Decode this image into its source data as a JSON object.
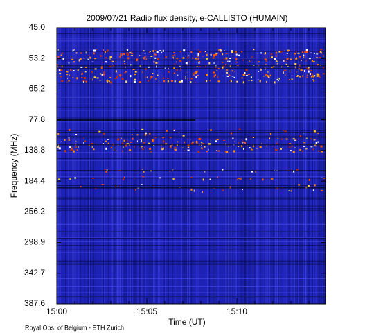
{
  "chart_data": {
    "type": "spectrogram",
    "title": "2009/07/21  Radio flux density, e-CALLISTO (HUMAIN)",
    "y_label": "Frequency (MHz)",
    "x_label": "Time (UT)",
    "yticks": [
      {
        "value": 45,
        "label": "45.0"
      },
      {
        "value": 53.2,
        "label": "53.2"
      },
      {
        "value": 65.2,
        "label": "65.2"
      },
      {
        "value": 77.8,
        "label": "77.8"
      },
      {
        "value": 138.8,
        "label": "138.8"
      },
      {
        "value": 184.4,
        "label": "184.4"
      },
      {
        "value": 256.2,
        "label": "256.2"
      },
      {
        "value": 298.9,
        "label": "298.9"
      },
      {
        "value": 342.7,
        "label": "342.7"
      },
      {
        "value": 387.6,
        "label": "387.6"
      }
    ],
    "xticks": [
      "15:00",
      "15:05",
      "15:10"
    ],
    "credit": "Royal Obs. of Belgium - ETH Zurich"
  }
}
